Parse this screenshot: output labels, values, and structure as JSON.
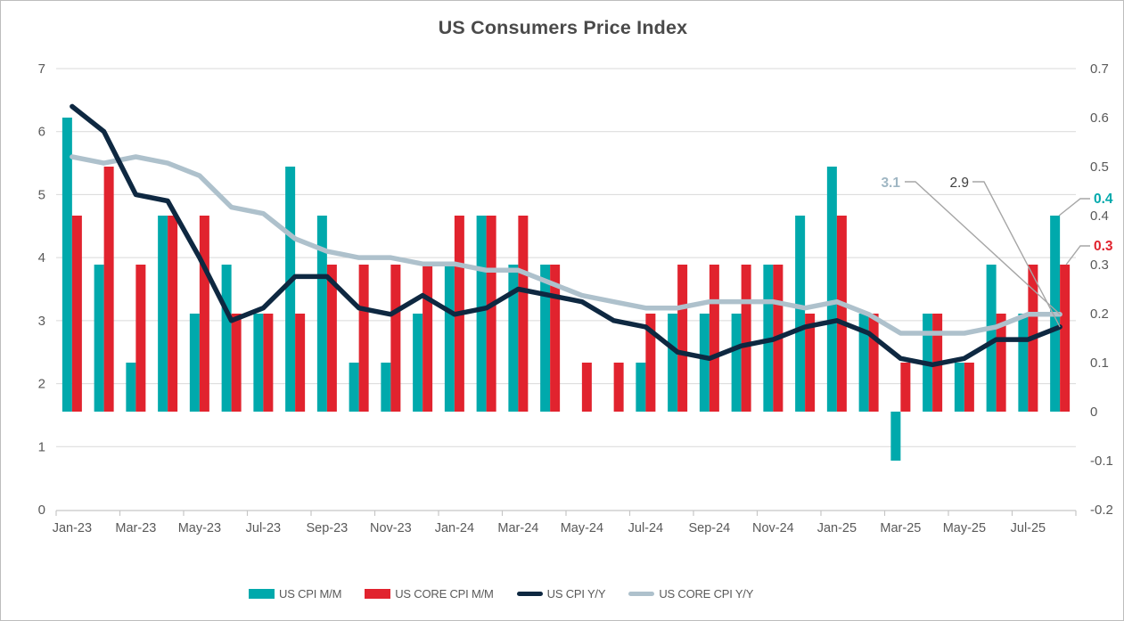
{
  "chart_data": {
    "type": "combo bar+line, dual axis",
    "title": "US Consumers Price Index",
    "months": [
      "Jan-23",
      "Feb-23",
      "Mar-23",
      "Apr-23",
      "May-23",
      "Jun-23",
      "Jul-23",
      "Aug-23",
      "Sep-23",
      "Oct-23",
      "Nov-23",
      "Dec-23",
      "Jan-24",
      "Feb-24",
      "Mar-24",
      "Apr-24",
      "May-24",
      "Jun-24",
      "Jul-24",
      "Aug-24",
      "Sep-24",
      "Oct-24",
      "Nov-24",
      "Dec-24",
      "Jan-25",
      "Feb-25",
      "Mar-25",
      "Apr-25",
      "May-25",
      "Jun-25",
      "Jul-25",
      "Aug-25"
    ],
    "x_tick_step": 2,
    "x_tick_labels": [
      "Jan-23",
      "Mar-23",
      "May-23",
      "Jul-23",
      "Sep-23",
      "Nov-23",
      "Jan-24",
      "Mar-24",
      "May-24",
      "Jul-24",
      "Sep-24",
      "Nov-24",
      "Jan-25",
      "Mar-25",
      "May-25",
      "Jul-25"
    ],
    "left_axis": {
      "min": 0,
      "max": 7,
      "labels": [
        "7",
        "6",
        "5",
        "4",
        "3",
        "2",
        "1",
        "0"
      ],
      "values": [
        7,
        6,
        5,
        4,
        3,
        2,
        1,
        0
      ]
    },
    "right_axis": {
      "min": -0.2,
      "max": 0.7,
      "labels": [
        "0.7",
        "0.6",
        "0.5",
        "0.4",
        "0.3",
        "0.2",
        "0.1",
        "0",
        "-0.1",
        "-0.2"
      ],
      "values": [
        0.7,
        0.6,
        0.5,
        0.4,
        0.3,
        0.2,
        0.1,
        0,
        -0.1,
        -0.2
      ]
    },
    "grid": true,
    "legend_position": "bottom",
    "series": [
      {
        "name": "US CPI M/M",
        "type": "bar",
        "axis": "right",
        "color": "#00A9AC",
        "values": [
          0.6,
          0.3,
          0.1,
          0.4,
          0.2,
          0.3,
          0.2,
          0.5,
          0.4,
          0.1,
          0.1,
          0.2,
          0.3,
          0.4,
          0.3,
          0.3,
          0.0,
          0.0,
          0.1,
          0.2,
          0.2,
          0.2,
          0.3,
          0.4,
          0.5,
          0.2,
          -0.1,
          0.2,
          0.1,
          0.3,
          0.2,
          0.4
        ]
      },
      {
        "name": "US CORE CPI M/M",
        "type": "bar",
        "axis": "right",
        "color": "#E1232E",
        "values": [
          0.4,
          0.5,
          0.3,
          0.4,
          0.4,
          0.2,
          0.2,
          0.2,
          0.3,
          0.3,
          0.3,
          0.3,
          0.4,
          0.4,
          0.4,
          0.3,
          0.1,
          0.1,
          0.2,
          0.3,
          0.3,
          0.3,
          0.3,
          0.2,
          0.4,
          0.2,
          0.1,
          0.2,
          0.1,
          0.2,
          0.3,
          0.3
        ]
      },
      {
        "name": "US CPI Y/Y",
        "type": "line",
        "axis": "left",
        "color": "#0E2841",
        "values": [
          6.4,
          6.0,
          5.0,
          4.9,
          4.0,
          3.0,
          3.2,
          3.7,
          3.7,
          3.2,
          3.1,
          3.4,
          3.1,
          3.2,
          3.5,
          3.4,
          3.3,
          3.0,
          2.9,
          2.5,
          2.4,
          2.6,
          2.7,
          2.9,
          3.0,
          2.8,
          2.4,
          2.3,
          2.4,
          2.7,
          2.7,
          2.9
        ]
      },
      {
        "name": "US CORE CPI Y/Y",
        "type": "line",
        "axis": "left",
        "color": "#AEC1CC",
        "values": [
          5.6,
          5.5,
          5.6,
          5.5,
          5.3,
          4.8,
          4.7,
          4.3,
          4.1,
          4.0,
          4.0,
          3.9,
          3.9,
          3.8,
          3.8,
          3.6,
          3.4,
          3.3,
          3.2,
          3.2,
          3.3,
          3.3,
          3.3,
          3.2,
          3.3,
          3.1,
          2.8,
          2.8,
          2.8,
          2.9,
          3.1,
          3.1
        ]
      }
    ],
    "annotations": [
      {
        "text": "3.1",
        "series": "US CORE CPI Y/Y",
        "color": "#9FB6C3",
        "bold": true
      },
      {
        "text": "2.9",
        "series": "US CPI Y/Y",
        "color": "#404040",
        "bold": false
      },
      {
        "text": "0.4",
        "series": "US CPI M/M",
        "color": "#00A9AC",
        "bold": true
      },
      {
        "text": "0.3",
        "series": "US CORE CPI M/M",
        "color": "#E1232E",
        "bold": true
      }
    ],
    "colors": {
      "grid": "#D9D9D9",
      "axis_line": "#C6C6C6",
      "tick_text": "#595959",
      "title_text": "#4A4A4A",
      "leader_line": "#A6A6A6",
      "background": "#FFFFFF"
    }
  }
}
